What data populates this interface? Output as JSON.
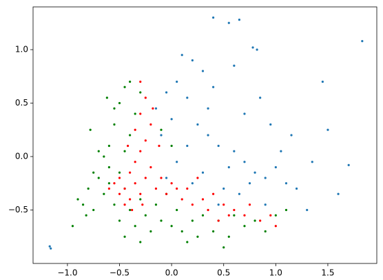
{
  "chart_data": {
    "type": "scatter",
    "xlim": [
      -1.33,
      1.97
    ],
    "ylim": [
      -1.0,
      1.4
    ],
    "xticks": [
      {
        "value": -1.0,
        "label": "−1.0"
      },
      {
        "value": -0.5,
        "label": "−0.5"
      },
      {
        "value": 0.0,
        "label": "0.0"
      },
      0.5,
      {
        "value": 1.0,
        "label": "1.0"
      },
      1.5
    ],
    "yticks": [
      {
        "value": -0.5,
        "label": "−0.5"
      },
      {
        "value": 0.0,
        "label": "0.0"
      },
      0.5,
      {
        "value": 1.0,
        "label": "1.0"
      }
    ],
    "grid": false,
    "series": [
      {
        "color": "#1f77b4",
        "x": [
          -1.17,
          -1.16,
          1.83,
          0.4,
          0.65,
          0.55,
          0.78,
          0.82,
          0.2,
          0.1,
          0.3,
          0.05,
          -0.05,
          0.15,
          0.35,
          0.25,
          0.0,
          -0.1,
          0.45,
          0.6,
          0.7,
          0.55,
          0.8,
          0.9,
          1.0,
          1.1,
          1.2,
          1.35,
          1.45,
          1.5,
          1.7,
          1.6,
          0.95,
          0.85,
          0.6,
          0.4,
          0.15,
          0.3,
          0.5,
          0.65,
          0.75,
          1.05,
          0.35,
          0.05,
          -0.15,
          -0.05,
          0.2,
          0.45,
          0.9,
          1.3,
          0.7,
          1.15
        ],
        "values": [
          -0.84,
          -0.86,
          1.08,
          1.3,
          1.28,
          1.25,
          1.02,
          1.0,
          0.9,
          0.95,
          0.8,
          0.7,
          0.6,
          0.55,
          0.45,
          0.3,
          0.35,
          0.2,
          0.1,
          0.05,
          -0.05,
          -0.1,
          -0.15,
          -0.2,
          -0.1,
          -0.25,
          -0.3,
          -0.05,
          0.7,
          0.25,
          -0.08,
          -0.35,
          0.3,
          0.55,
          0.85,
          0.65,
          0.1,
          -0.15,
          -0.3,
          -0.35,
          -0.25,
          0.05,
          0.2,
          -0.05,
          0.45,
          -0.2,
          -0.25,
          -0.45,
          -0.45,
          -0.5,
          0.4,
          0.2
        ]
      },
      {
        "color": "#008000",
        "x": [
          -0.95,
          -0.9,
          -0.8,
          -0.75,
          -0.7,
          -0.65,
          -0.6,
          -0.6,
          -0.55,
          -0.5,
          -0.45,
          -0.4,
          -0.55,
          -0.5,
          -0.45,
          -0.4,
          -0.35,
          -0.3,
          -0.25,
          -0.2,
          -0.15,
          -0.1,
          0.0,
          0.05,
          0.1,
          0.2,
          0.25,
          0.3,
          0.4,
          0.45,
          0.55,
          0.6,
          0.7,
          0.8,
          0.9,
          1.0,
          1.1,
          0.5,
          -0.65,
          -0.6,
          -0.5,
          -0.45,
          -0.4,
          -0.35,
          -0.3,
          -0.7,
          -0.75,
          -0.85,
          -0.55,
          -0.45,
          -0.3,
          0.15,
          -0.05,
          0.0,
          -0.1,
          -0.62,
          -0.78,
          -0.82
        ],
        "values": [
          -0.65,
          -0.4,
          -0.3,
          -0.5,
          -0.2,
          -0.35,
          -0.1,
          0.1,
          0.3,
          0.5,
          0.65,
          0.7,
          -0.45,
          -0.6,
          -0.3,
          -0.5,
          -0.65,
          -0.4,
          -0.55,
          -0.7,
          -0.45,
          -0.6,
          -0.65,
          -0.5,
          -0.7,
          -0.6,
          -0.75,
          -0.55,
          -0.7,
          -0.6,
          -0.75,
          -0.55,
          -0.65,
          -0.6,
          -0.7,
          -0.55,
          -0.5,
          -0.85,
          0.0,
          -0.25,
          -0.15,
          0.05,
          0.2,
          0.4,
          0.6,
          0.05,
          -0.15,
          -0.45,
          0.45,
          -0.75,
          -0.8,
          -0.8,
          -0.35,
          0.1,
          0.25,
          0.55,
          0.25,
          -0.55
        ]
      },
      {
        "color": "#ff0000",
        "x": [
          -0.5,
          -0.45,
          -0.4,
          -0.35,
          -0.3,
          -0.25,
          -0.4,
          -0.5,
          -0.55,
          -0.35,
          -0.3,
          -0.25,
          -0.35,
          -0.3,
          -0.25,
          -0.3,
          -0.2,
          -0.2,
          -0.15,
          -0.1,
          -0.05,
          0.0,
          0.05,
          0.1,
          0.15,
          0.2,
          0.3,
          0.35,
          0.4,
          0.5,
          0.55,
          0.6,
          0.7,
          0.75,
          0.85,
          0.95,
          1.0,
          -0.6,
          -0.45,
          -0.38,
          -0.42,
          -0.28,
          -0.18,
          -0.12,
          0.25,
          0.45
        ],
        "values": [
          -0.2,
          -0.3,
          -0.15,
          -0.25,
          -0.35,
          -0.2,
          -0.4,
          -0.35,
          -0.25,
          -0.05,
          0.05,
          0.15,
          0.25,
          0.4,
          0.55,
          0.7,
          0.3,
          -0.1,
          -0.3,
          -0.2,
          -0.35,
          -0.25,
          -0.3,
          -0.4,
          -0.3,
          -0.45,
          -0.4,
          -0.5,
          -0.35,
          -0.45,
          -0.55,
          -0.5,
          -0.55,
          -0.45,
          -0.6,
          -0.55,
          -0.65,
          -0.3,
          -0.45,
          -0.5,
          0.1,
          -0.45,
          0.45,
          0.1,
          -0.2,
          -0.6
        ]
      }
    ]
  }
}
